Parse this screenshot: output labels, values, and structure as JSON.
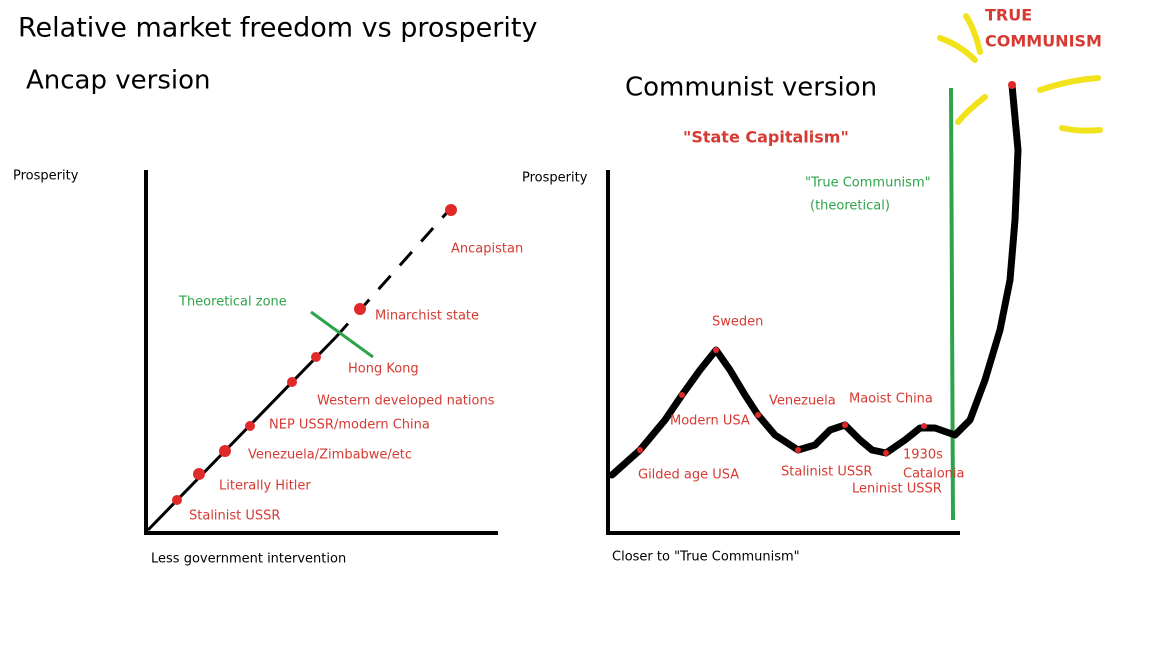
{
  "title": "Relative market freedom vs prosperity",
  "left": {
    "heading": "Ancap version",
    "y_label": "Prosperity",
    "x_label": "Less government intervention",
    "zone_label": "Theoretical zone",
    "points": [
      "Stalinist USSR",
      "Literally Hitler",
      "Venezuela/Zimbabwe/etc",
      "NEP USSR/modern China",
      "Western developed nations",
      "Hong Kong",
      "Minarchist state",
      "Ancapistan"
    ]
  },
  "right": {
    "heading": "Communist version",
    "annotation": "\"State Capitalism\"",
    "theory_label": [
      "\"True Communism\"",
      "(theoretical)"
    ],
    "y_label": "Prosperity",
    "x_label": "Closer to \"True Communism\"",
    "points": [
      "Gilded age USA",
      "Modern USA",
      "Sweden",
      "Venezuela",
      "Stalinist USSR",
      "Maoist China",
      "Leninist USSR",
      "1930s",
      "Catalonia"
    ],
    "peak": [
      "TRUE",
      "COMMUNISM"
    ]
  }
}
